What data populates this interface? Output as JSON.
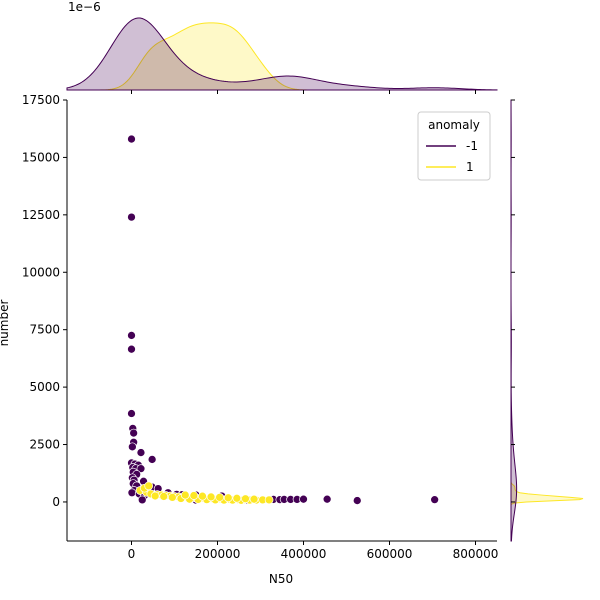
{
  "chart_data": {
    "type": "scatter",
    "title": "",
    "xlabel": "N50",
    "ylabel": "number",
    "xlim": [
      -150000,
      850000
    ],
    "ylim": [
      -1700,
      17500
    ],
    "x_ticks": [
      0,
      200000,
      400000,
      600000,
      800000
    ],
    "x_tick_labels": [
      "0",
      "200000",
      "400000",
      "600000",
      "800000"
    ],
    "y_ticks": [
      0,
      2500,
      5000,
      7500,
      10000,
      12500,
      15000,
      17500
    ],
    "y_tick_labels": [
      "0",
      "2500",
      "5000",
      "7500",
      "10000",
      "12500",
      "15000",
      "17500"
    ],
    "grid": false,
    "legend": {
      "title": "anomaly",
      "placement": "top-right"
    },
    "top_marginal_offset_text": "1e−6",
    "series": [
      {
        "name": "-1",
        "color": "#440154",
        "points": [
          [
            0,
            15800
          ],
          [
            0,
            12400
          ],
          [
            0,
            7250
          ],
          [
            0,
            6650
          ],
          [
            0,
            3850
          ],
          [
            3000,
            3200
          ],
          [
            5000,
            3000
          ],
          [
            5000,
            2600
          ],
          [
            2000,
            2400
          ],
          [
            22000,
            2150
          ],
          [
            48000,
            1850
          ],
          [
            0,
            1700
          ],
          [
            8000,
            1650
          ],
          [
            16000,
            1600
          ],
          [
            3000,
            1500
          ],
          [
            10000,
            1450
          ],
          [
            22000,
            1450
          ],
          [
            4000,
            1300
          ],
          [
            12000,
            1200
          ],
          [
            2000,
            1050
          ],
          [
            6000,
            950
          ],
          [
            28000,
            900
          ],
          [
            4000,
            800
          ],
          [
            12000,
            700
          ],
          [
            48000,
            650
          ],
          [
            62000,
            580
          ],
          [
            6000,
            500
          ],
          [
            1000,
            400
          ],
          [
            36000,
            420
          ],
          [
            85000,
            400
          ],
          [
            105000,
            330
          ],
          [
            118000,
            320
          ],
          [
            150000,
            300
          ],
          [
            210000,
            260
          ],
          [
            18000,
            350
          ],
          [
            30000,
            280
          ],
          [
            25000,
            90
          ],
          [
            150000,
            80
          ],
          [
            270000,
            80
          ],
          [
            330000,
            110
          ],
          [
            345000,
            100
          ],
          [
            355000,
            110
          ],
          [
            370000,
            110
          ],
          [
            385000,
            110
          ],
          [
            400000,
            120
          ],
          [
            455000,
            120
          ],
          [
            525000,
            60
          ],
          [
            705000,
            100
          ]
        ]
      },
      {
        "name": "1",
        "color": "#fde725",
        "points": [
          [
            20000,
            500
          ],
          [
            35000,
            420
          ],
          [
            45000,
            350
          ],
          [
            60000,
            320
          ],
          [
            70000,
            300
          ],
          [
            80000,
            280
          ],
          [
            90000,
            260
          ],
          [
            100000,
            240
          ],
          [
            110000,
            220
          ],
          [
            120000,
            200
          ],
          [
            130000,
            200
          ],
          [
            140000,
            180
          ],
          [
            150000,
            170
          ],
          [
            160000,
            160
          ],
          [
            170000,
            150
          ],
          [
            180000,
            140
          ],
          [
            190000,
            130
          ],
          [
            200000,
            120
          ],
          [
            210000,
            110
          ],
          [
            220000,
            110
          ],
          [
            230000,
            100
          ],
          [
            240000,
            100
          ],
          [
            250000,
            90
          ],
          [
            260000,
            90
          ],
          [
            275000,
            80
          ],
          [
            290000,
            80
          ],
          [
            305000,
            90
          ],
          [
            320000,
            90
          ],
          [
            55000,
            260
          ],
          [
            75000,
            240
          ],
          [
            95000,
            200
          ],
          [
            115000,
            150
          ],
          [
            135000,
            120
          ],
          [
            155000,
            110
          ],
          [
            175000,
            100
          ],
          [
            195000,
            90
          ],
          [
            215000,
            80
          ],
          [
            235000,
            80
          ],
          [
            255000,
            70
          ],
          [
            125000,
            300
          ],
          [
            145000,
            280
          ],
          [
            165000,
            250
          ],
          [
            185000,
            220
          ],
          [
            205000,
            200
          ],
          [
            225000,
            180
          ],
          [
            245000,
            160
          ],
          [
            265000,
            140
          ],
          [
            285000,
            120
          ],
          [
            30000,
            600
          ],
          [
            40000,
            700
          ]
        ]
      }
    ]
  }
}
